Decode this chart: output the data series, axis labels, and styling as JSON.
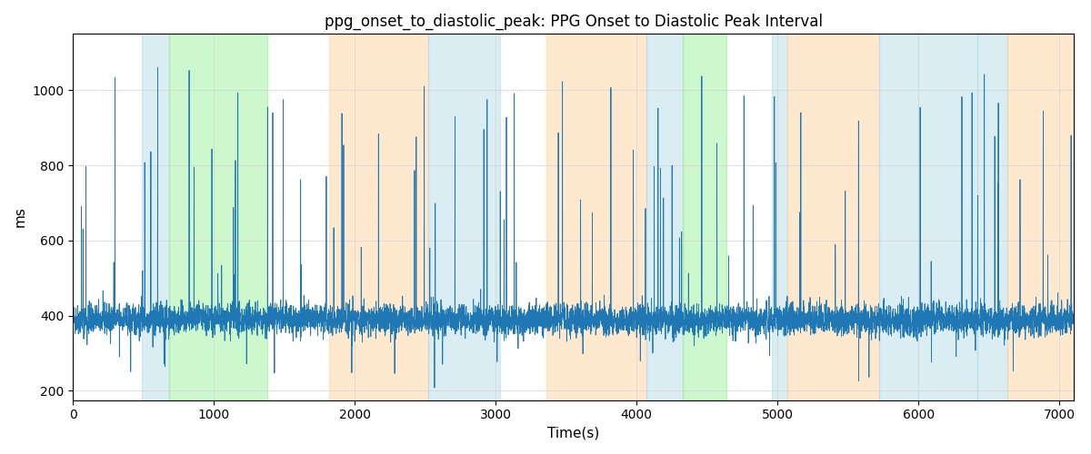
{
  "title": "ppg_onset_to_diastolic_peak: PPG Onset to Diastolic Peak Interval",
  "xlabel": "Time(s)",
  "ylabel": "ms",
  "xlim": [
    0,
    7100
  ],
  "ylim": [
    175,
    1150
  ],
  "yticks": [
    200,
    400,
    600,
    800,
    1000
  ],
  "xticks": [
    0,
    1000,
    2000,
    3000,
    4000,
    5000,
    6000,
    7000
  ],
  "figsize": [
    12,
    5
  ],
  "dpi": 100,
  "line_color": "#1f77b4",
  "line_width": 0.6,
  "background_color": "#ffffff",
  "bands": [
    [
      490,
      680,
      "#add8e6",
      0.45
    ],
    [
      680,
      1380,
      "#90ee90",
      0.45
    ],
    [
      1820,
      2520,
      "#ffd59e",
      0.5
    ],
    [
      2520,
      3030,
      "#add8e6",
      0.45
    ],
    [
      3360,
      4070,
      "#ffd59e",
      0.5
    ],
    [
      4070,
      4330,
      "#add8e6",
      0.45
    ],
    [
      4330,
      4640,
      "#90ee90",
      0.45
    ],
    [
      4960,
      5070,
      "#add8e6",
      0.45
    ],
    [
      5070,
      5720,
      "#ffd59e",
      0.5
    ],
    [
      5720,
      6420,
      "#add8e6",
      0.45
    ],
    [
      6420,
      6630,
      "#add8e6",
      0.45
    ],
    [
      6630,
      7100,
      "#ffd59e",
      0.5
    ]
  ],
  "seed": 42,
  "n_points": 7000,
  "base_value": 390,
  "noise_std": 20,
  "spike_prob": 0.012,
  "spike_min": 100,
  "spike_max": 680,
  "dip_prob": 0.005,
  "dip_min": 50,
  "dip_max": 160
}
